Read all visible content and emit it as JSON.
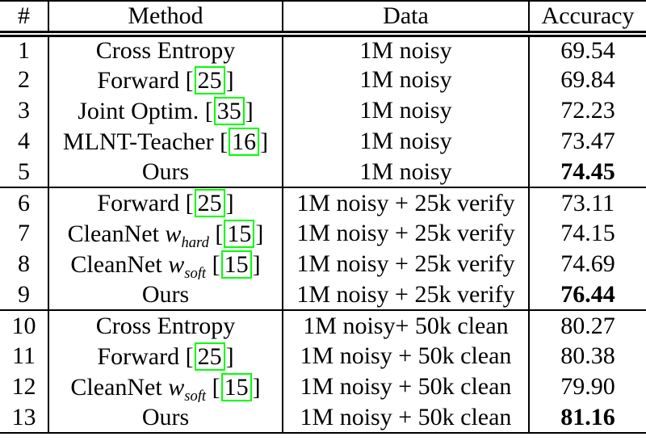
{
  "table": {
    "headers": [
      "#",
      "Method",
      "Data",
      "Accuracy"
    ],
    "rows": [
      {
        "num": "1",
        "method": [
          {
            "t": "text",
            "v": "Cross Entropy"
          }
        ],
        "data": "1M noisy",
        "accuracy": "69.54",
        "bold": false,
        "section_start": false
      },
      {
        "num": "2",
        "method": [
          {
            "t": "text",
            "v": "Forward"
          },
          {
            "t": "cite",
            "v": "25"
          }
        ],
        "data": "1M noisy",
        "accuracy": "69.84",
        "bold": false,
        "section_start": false
      },
      {
        "num": "3",
        "method": [
          {
            "t": "text",
            "v": "Joint Optim."
          },
          {
            "t": "cite",
            "v": "35"
          }
        ],
        "data": "1M noisy",
        "accuracy": "72.23",
        "bold": false,
        "section_start": false
      },
      {
        "num": "4",
        "method": [
          {
            "t": "text",
            "v": "MLNT-Teacher"
          },
          {
            "t": "cite",
            "v": "16"
          }
        ],
        "data": "1M noisy",
        "accuracy": "73.47",
        "bold": false,
        "section_start": false
      },
      {
        "num": "5",
        "method": [
          {
            "t": "text",
            "v": "Ours"
          }
        ],
        "data": "1M noisy",
        "accuracy": "74.45",
        "bold": true,
        "section_start": false
      },
      {
        "num": "6",
        "method": [
          {
            "t": "text",
            "v": "Forward"
          },
          {
            "t": "cite",
            "v": "25"
          }
        ],
        "data": "1M noisy + 25k verify",
        "accuracy": "73.11",
        "bold": false,
        "section_start": true
      },
      {
        "num": "7",
        "method": [
          {
            "t": "text",
            "v": "CleanNet"
          },
          {
            "t": "mathsub",
            "base": "w",
            "sub": "hard"
          },
          {
            "t": "cite",
            "v": "15"
          }
        ],
        "data": "1M noisy + 25k verify",
        "accuracy": "74.15",
        "bold": false,
        "section_start": false
      },
      {
        "num": "8",
        "method": [
          {
            "t": "text",
            "v": "CleanNet"
          },
          {
            "t": "mathsub",
            "base": "w",
            "sub": "soft"
          },
          {
            "t": "cite",
            "v": "15"
          }
        ],
        "data": "1M noisy + 25k verify",
        "accuracy": "74.69",
        "bold": false,
        "section_start": false
      },
      {
        "num": "9",
        "method": [
          {
            "t": "text",
            "v": "Ours"
          }
        ],
        "data": "1M noisy + 25k verify",
        "accuracy": "76.44",
        "bold": true,
        "section_start": false
      },
      {
        "num": "10",
        "method": [
          {
            "t": "text",
            "v": "Cross Entropy"
          }
        ],
        "data": "1M noisy+ 50k clean",
        "accuracy": "80.27",
        "bold": false,
        "section_start": true
      },
      {
        "num": "11",
        "method": [
          {
            "t": "text",
            "v": "Forward"
          },
          {
            "t": "cite",
            "v": "25"
          }
        ],
        "data": "1M noisy + 50k clean",
        "accuracy": "80.38",
        "bold": false,
        "section_start": false
      },
      {
        "num": "12",
        "method": [
          {
            "t": "text",
            "v": "CleanNet"
          },
          {
            "t": "mathsub",
            "base": "w",
            "sub": "soft"
          },
          {
            "t": "cite",
            "v": "15"
          }
        ],
        "data": "1M noisy + 50k clean",
        "accuracy": "79.90",
        "bold": false,
        "section_start": false
      },
      {
        "num": "13",
        "method": [
          {
            "t": "text",
            "v": "Ours"
          }
        ],
        "data": "1M noisy + 50k clean",
        "accuracy": "81.16",
        "bold": true,
        "section_start": false
      }
    ]
  },
  "colors": {
    "text": "#000000",
    "background": "#ffffff",
    "rule": "#000000",
    "citation_box": "#00ff00"
  }
}
